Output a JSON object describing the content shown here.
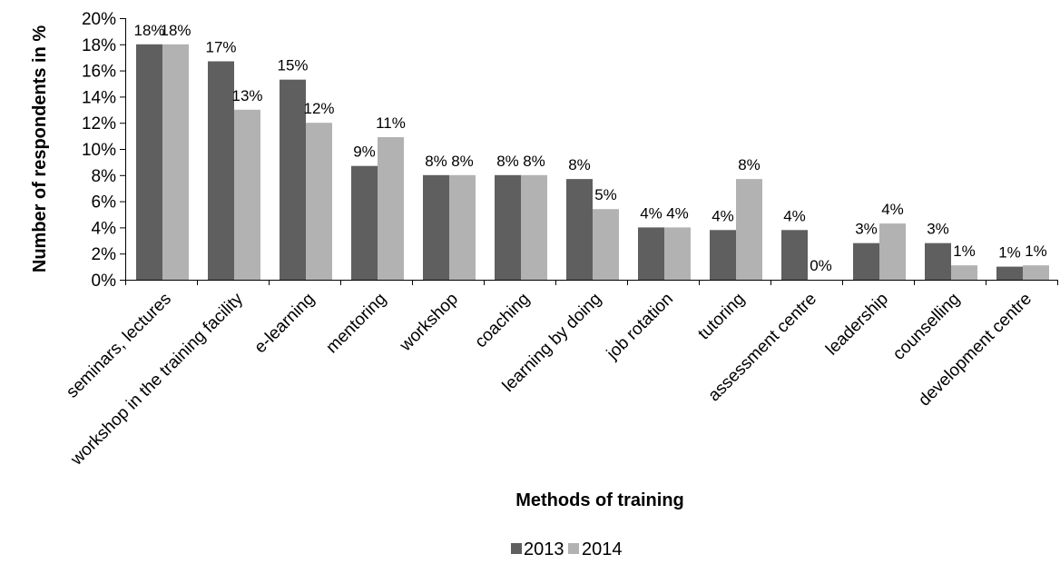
{
  "chart_data": {
    "type": "bar",
    "xlabel": "Methods of training",
    "ylabel": "Number of respondents in %",
    "ylim": [
      0,
      20
    ],
    "ytick_step": 2,
    "ytick_labels": [
      "0%",
      "2%",
      "4%",
      "6%",
      "8%",
      "10%",
      "12%",
      "14%",
      "16%",
      "18%",
      "20%"
    ],
    "grid": false,
    "legend_position": "bottom",
    "categories": [
      "seminars, lectures",
      "workshop in the training facility",
      "e-learning",
      "mentoring",
      "workshop",
      "coaching",
      "learning by doing",
      "job rotation",
      "tutoring",
      "assessment centre",
      "leadership",
      "counselling",
      "development centre"
    ],
    "series": [
      {
        "name": "2013",
        "color": "#5f5f5f",
        "values": [
          18.0,
          16.7,
          15.3,
          8.7,
          8.0,
          8.0,
          7.7,
          4.0,
          3.8,
          3.8,
          2.8,
          2.8,
          1.0
        ],
        "labels": [
          "18%",
          "17%",
          "15%",
          "9%",
          "8%",
          "8%",
          "8%",
          "4%",
          "4%",
          "4%",
          "3%",
          "3%",
          "1%"
        ]
      },
      {
        "name": "2014",
        "color": "#b2b2b2",
        "values": [
          18.0,
          13.0,
          12.0,
          10.9,
          8.0,
          8.0,
          5.4,
          4.0,
          7.7,
          0.0,
          4.3,
          1.1,
          1.1
        ],
        "labels": [
          "18%",
          "13%",
          "12%",
          "11%",
          "8%",
          "8%",
          "5%",
          "4%",
          "8%",
          "0%",
          "4%",
          "1%",
          "1%"
        ]
      }
    ]
  }
}
